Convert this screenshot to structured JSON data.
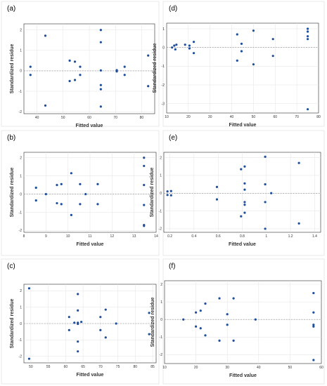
{
  "chart_data": [
    {
      "type": "scatter",
      "panel_label": "(a)",
      "xlabel": "Fitted value",
      "ylabel": "Standardized residue",
      "xlim": [
        35,
        85
      ],
      "ylim": [
        -2.1,
        2.3
      ],
      "xticks": [
        40,
        50,
        60,
        70,
        80
      ],
      "yticks": [
        -2,
        -1,
        0,
        1,
        2
      ],
      "reference_line_y": 0,
      "grid": true,
      "marker_color": "#1f4e9c",
      "points": [
        {
          "x": 37.5,
          "y": 0.2
        },
        {
          "x": 37.5,
          "y": -0.2
        },
        {
          "x": 43.2,
          "y": 1.72
        },
        {
          "x": 43.2,
          "y": -1.7
        },
        {
          "x": 52.5,
          "y": 0.5
        },
        {
          "x": 52.5,
          "y": -0.5
        },
        {
          "x": 54.5,
          "y": 0.45
        },
        {
          "x": 54.5,
          "y": -0.45
        },
        {
          "x": 56.5,
          "y": 0.2
        },
        {
          "x": 56.5,
          "y": -0.2
        },
        {
          "x": 64.4,
          "y": 2.0
        },
        {
          "x": 64.4,
          "y": 1.4
        },
        {
          "x": 64.4,
          "y": 0.02
        },
        {
          "x": 64.4,
          "y": -0.7
        },
        {
          "x": 64.4,
          "y": -0.9
        },
        {
          "x": 64.4,
          "y": -1.75
        },
        {
          "x": 70.5,
          "y": 0.03
        },
        {
          "x": 70.5,
          "y": -0.03
        },
        {
          "x": 73.5,
          "y": 0.2
        },
        {
          "x": 73.5,
          "y": -0.2
        },
        {
          "x": 82.5,
          "y": 0.75
        },
        {
          "x": 82.5,
          "y": -0.75
        }
      ]
    },
    {
      "type": "scatter",
      "panel_label": "(d)",
      "xlabel": "Fitted value",
      "ylabel": "Standardized residue",
      "xlim": [
        10,
        80
      ],
      "ylim": [
        -3.5,
        1.3
      ],
      "xticks": [
        10,
        20,
        30,
        40,
        50,
        60,
        70,
        80
      ],
      "yticks": [
        -3,
        -2,
        -1,
        0,
        1
      ],
      "reference_line_y": 0,
      "grid": true,
      "marker_color": "#1f4e9c",
      "points": [
        {
          "x": 12.5,
          "y": 0.0
        },
        {
          "x": 13.5,
          "y": 0.1
        },
        {
          "x": 14.0,
          "y": -0.1
        },
        {
          "x": 14.5,
          "y": 0.15
        },
        {
          "x": 18.5,
          "y": 0.15
        },
        {
          "x": 20.5,
          "y": 0.1
        },
        {
          "x": 20.5,
          "y": -0.05
        },
        {
          "x": 22.5,
          "y": 0.3
        },
        {
          "x": 22.5,
          "y": -0.3
        },
        {
          "x": 42.5,
          "y": 0.7
        },
        {
          "x": 42.5,
          "y": -0.7
        },
        {
          "x": 44.5,
          "y": 0.2
        },
        {
          "x": 44.5,
          "y": -0.2
        },
        {
          "x": 50.0,
          "y": 0.9
        },
        {
          "x": 50.0,
          "y": -0.9
        },
        {
          "x": 59.0,
          "y": 0.45
        },
        {
          "x": 59.0,
          "y": -0.45
        },
        {
          "x": 75.0,
          "y": 1.0
        },
        {
          "x": 75.0,
          "y": 0.85
        },
        {
          "x": 75.0,
          "y": 0.6
        },
        {
          "x": 75.0,
          "y": 0.45
        },
        {
          "x": 75.0,
          "y": -3.3
        }
      ]
    },
    {
      "type": "scatter",
      "panel_label": "(b)",
      "xlabel": "Fitted value",
      "ylabel": "Standardized residue",
      "xlim": [
        8,
        14
      ],
      "ylim": [
        -2.1,
        2.3
      ],
      "xticks": [
        8,
        9,
        10,
        11,
        12,
        13,
        14
      ],
      "yticks": [
        -2,
        -1,
        0,
        1,
        2
      ],
      "reference_line_y": 0,
      "grid": true,
      "marker_color": "#1f4e9c",
      "points": [
        {
          "x": 8.55,
          "y": 0.35
        },
        {
          "x": 8.55,
          "y": -0.35
        },
        {
          "x": 9.0,
          "y": 0.0
        },
        {
          "x": 9.5,
          "y": 0.5
        },
        {
          "x": 9.5,
          "y": -0.5
        },
        {
          "x": 9.7,
          "y": 0.55
        },
        {
          "x": 9.7,
          "y": -0.55
        },
        {
          "x": 10.15,
          "y": 1.15
        },
        {
          "x": 10.15,
          "y": -1.15
        },
        {
          "x": 10.55,
          "y": 0.55
        },
        {
          "x": 10.55,
          "y": -0.55
        },
        {
          "x": 10.8,
          "y": 0.0
        },
        {
          "x": 11.35,
          "y": 0.55
        },
        {
          "x": 11.35,
          "y": -0.55
        },
        {
          "x": 13.45,
          "y": 2.0
        },
        {
          "x": 13.45,
          "y": 1.55
        },
        {
          "x": 13.45,
          "y": 0.5
        },
        {
          "x": 13.45,
          "y": -0.6
        },
        {
          "x": 13.45,
          "y": -1.7
        },
        {
          "x": 13.45,
          "y": -1.75
        }
      ]
    },
    {
      "type": "scatter",
      "panel_label": "(e)",
      "xlabel": "Fitted value",
      "ylabel": "Standardized residue",
      "xlim": [
        0.15,
        1.45
      ],
      "ylim": [
        -2.2,
        2.3
      ],
      "xticks": [
        0.2,
        0.4,
        0.6,
        0.8,
        1.0,
        1.2,
        1.4
      ],
      "yticks": [
        -2,
        -1,
        0,
        1,
        2
      ],
      "reference_line_y": 0,
      "grid": true,
      "marker_color": "#1f4e9c",
      "points": [
        {
          "x": 0.18,
          "y": 0.1
        },
        {
          "x": 0.18,
          "y": -0.1
        },
        {
          "x": 0.21,
          "y": 0.12
        },
        {
          "x": 0.21,
          "y": -0.12
        },
        {
          "x": 0.59,
          "y": 0.35
        },
        {
          "x": 0.59,
          "y": -0.35
        },
        {
          "x": 0.79,
          "y": 1.35
        },
        {
          "x": 0.79,
          "y": -1.3
        },
        {
          "x": 0.82,
          "y": 1.5
        },
        {
          "x": 0.82,
          "y": 0.55
        },
        {
          "x": 0.82,
          "y": 0.2
        },
        {
          "x": 0.82,
          "y": -0.5
        },
        {
          "x": 0.82,
          "y": -0.65
        },
        {
          "x": 0.82,
          "y": -1.1
        },
        {
          "x": 0.99,
          "y": 2.05
        },
        {
          "x": 0.99,
          "y": 0.5
        },
        {
          "x": 0.99,
          "y": -0.5
        },
        {
          "x": 0.99,
          "y": -2.0
        },
        {
          "x": 1.04,
          "y": 0.0
        },
        {
          "x": 1.27,
          "y": 1.7
        },
        {
          "x": 1.27,
          "y": -1.7
        }
      ]
    },
    {
      "type": "scatter",
      "panel_label": "(c)",
      "xlabel": "Fitted value",
      "ylabel": "Standardized residue",
      "xlim": [
        48,
        86
      ],
      "ylim": [
        -2.4,
        2.4
      ],
      "xticks": [
        50,
        55,
        60,
        65,
        70,
        75,
        80,
        85
      ],
      "yticks": [
        -2,
        -1,
        0,
        1,
        2
      ],
      "reference_line_y": 0,
      "grid": true,
      "marker_color": "#1f4e9c",
      "points": [
        {
          "x": 49.5,
          "y": 2.15
        },
        {
          "x": 49.5,
          "y": -2.15
        },
        {
          "x": 61.0,
          "y": 0.4
        },
        {
          "x": 61.0,
          "y": -0.4
        },
        {
          "x": 62.5,
          "y": 0.05
        },
        {
          "x": 63.5,
          "y": 1.8
        },
        {
          "x": 63.5,
          "y": 0.8
        },
        {
          "x": 63.5,
          "y": 0.05
        },
        {
          "x": 63.5,
          "y": -0.02
        },
        {
          "x": 63.5,
          "y": -1.1
        },
        {
          "x": 63.5,
          "y": -1.7
        },
        {
          "x": 64.5,
          "y": 0.1
        },
        {
          "x": 70.0,
          "y": 0.4
        },
        {
          "x": 70.0,
          "y": -0.4
        },
        {
          "x": 71.5,
          "y": 0.85
        },
        {
          "x": 71.5,
          "y": -0.85
        },
        {
          "x": 74.5,
          "y": 0.0
        },
        {
          "x": 84.0,
          "y": 0.65
        },
        {
          "x": 84.0,
          "y": -0.65
        }
      ]
    },
    {
      "type": "scatter",
      "panel_label": "(f)",
      "xlabel": "Fitted value",
      "ylabel": "Standardized residue",
      "xlim": [
        10,
        60
      ],
      "ylim": [
        -2.5,
        2.2
      ],
      "xticks": [
        10,
        20,
        30,
        40,
        50,
        60
      ],
      "yticks": [
        -2,
        -1,
        0,
        1,
        2
      ],
      "reference_line_y": 0,
      "grid": true,
      "marker_color": "#1f4e9c",
      "points": [
        {
          "x": 16.0,
          "y": 0.0
        },
        {
          "x": 20.0,
          "y": 0.4
        },
        {
          "x": 20.0,
          "y": -0.4
        },
        {
          "x": 21.5,
          "y": 0.5
        },
        {
          "x": 21.5,
          "y": -0.5
        },
        {
          "x": 23.0,
          "y": 0.9
        },
        {
          "x": 23.0,
          "y": -0.9
        },
        {
          "x": 27.5,
          "y": 1.2
        },
        {
          "x": 27.5,
          "y": -1.2
        },
        {
          "x": 30.0,
          "y": 0.3
        },
        {
          "x": 30.0,
          "y": -0.3
        },
        {
          "x": 32.0,
          "y": 1.2
        },
        {
          "x": 32.0,
          "y": -1.2
        },
        {
          "x": 39.0,
          "y": 0.0
        },
        {
          "x": 57.5,
          "y": 1.5
        },
        {
          "x": 57.5,
          "y": 0.4
        },
        {
          "x": 57.5,
          "y": -0.3
        },
        {
          "x": 57.5,
          "y": -0.4
        },
        {
          "x": 57.5,
          "y": -2.3
        }
      ]
    }
  ]
}
